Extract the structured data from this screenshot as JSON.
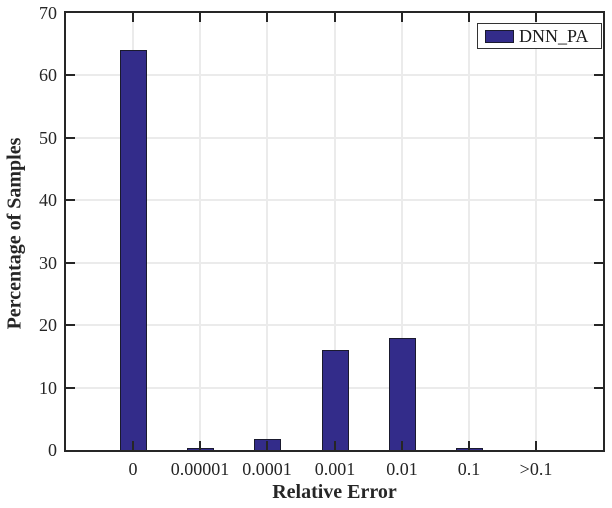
{
  "chart_data": {
    "type": "bar",
    "title": "",
    "categories": [
      "0",
      "0.00001",
      "0.0001",
      "0.001",
      "0.01",
      "0.1",
      ">0.1"
    ],
    "series": [
      {
        "name": "DNN_PA",
        "values": [
          64,
          0.4,
          1.8,
          16,
          18,
          0.4,
          0
        ]
      }
    ],
    "xlabel": "Relative Error",
    "ylabel": "Percentage of Samples",
    "ylim": [
      0,
      70
    ],
    "yticks": [
      0,
      10,
      20,
      30,
      40,
      50,
      60,
      70
    ],
    "xlim_units": [
      0,
      8
    ],
    "grid": true,
    "legend_position": "top-right",
    "colors": {
      "bar_fill": "#332c8a",
      "bar_edge": "#1a1a2e",
      "axis": "#262626",
      "grid": "#ebebeb",
      "text": "#262626",
      "background": "#ffffff"
    }
  }
}
